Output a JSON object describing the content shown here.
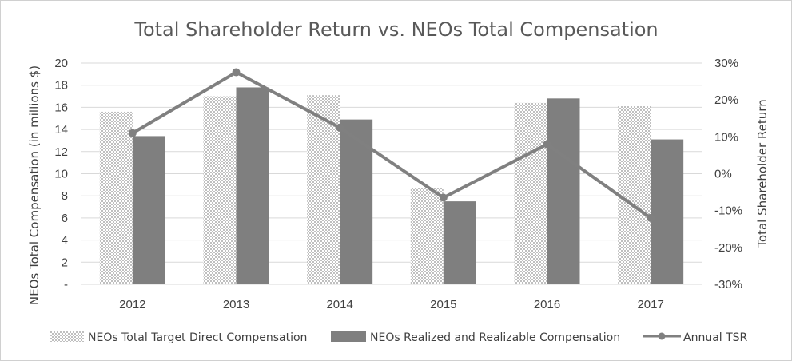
{
  "chart_data": {
    "type": "bar",
    "title": "Total Shareholder Return vs. NEOs Total Compensation",
    "categories": [
      "2012",
      "2013",
      "2014",
      "2015",
      "2016",
      "2017"
    ],
    "series": [
      {
        "name": "NEOs Total Target Direct Compensation",
        "type": "bar",
        "axis": "left",
        "pattern": "checker",
        "values": [
          15.6,
          17.0,
          17.1,
          8.7,
          16.4,
          16.1
        ]
      },
      {
        "name": "NEOs Realized and Realizable Compensation",
        "type": "bar",
        "axis": "left",
        "pattern": "solid",
        "values": [
          13.4,
          17.8,
          14.9,
          7.5,
          16.8,
          13.1
        ]
      },
      {
        "name": "Annual TSR",
        "type": "line",
        "axis": "right",
        "values": [
          11,
          27.5,
          12.5,
          -6.5,
          8,
          -12
        ]
      }
    ],
    "ylabel": "NEOs Total Compensation (in millions $)",
    "y2label": "Total Shareholder Return",
    "ylim": [
      0,
      20
    ],
    "y2lim": [
      -30,
      30
    ],
    "yticks": [
      "-",
      "2",
      "4",
      "6",
      "8",
      "10",
      "12",
      "14",
      "16",
      "18",
      "20"
    ],
    "y2ticks": [
      "-30%",
      "-20%",
      "-10%",
      "0%",
      "10%",
      "20%",
      "30%"
    ],
    "grid": true,
    "legend": "bottom"
  },
  "colors": {
    "solid_bar": "#7f7f7f",
    "checker_light": "#ffffff",
    "checker_dark": "#bfbfbf",
    "line": "#808080",
    "grid": "#d9d9d9"
  }
}
